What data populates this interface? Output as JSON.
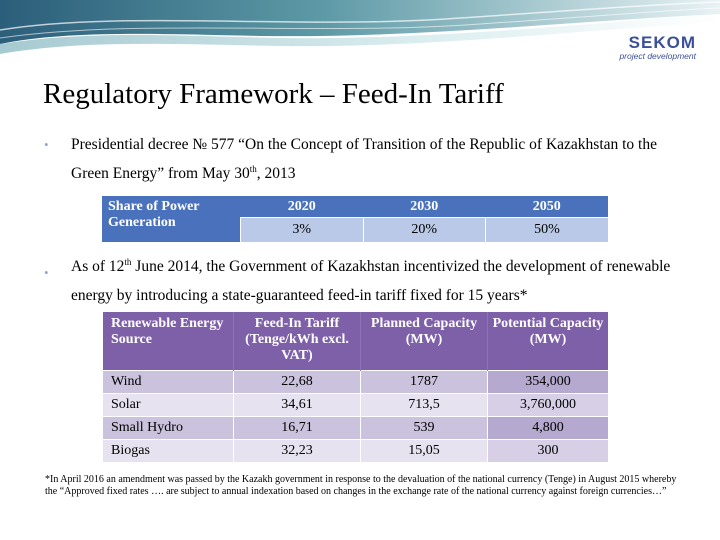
{
  "logo": {
    "name": "SEKOM",
    "tagline": "project development"
  },
  "title": "Regulatory Framework – Feed-In Tariff",
  "bullets": {
    "b1": {
      "text_before": "Presidential decree № 577 “On the Concept of Transition of the Republic of Kazakhstan to the Green Energy” from May 30",
      "sup": "th",
      "text_after": ", 2013"
    },
    "b2": {
      "text_before": "As of 12",
      "sup": "th",
      "text_after": " June 2014, the Government of Kazakhstan incentivized the development of renewable energy by introducing a state-guaranteed feed-in tariff fixed for 15 years*"
    }
  },
  "share_table": {
    "row_header": "Share of Power Generation",
    "years": [
      "2020",
      "2030",
      "2050"
    ],
    "values": [
      "3%",
      "20%",
      "50%"
    ]
  },
  "tariff_table": {
    "headers": [
      "Renewable Energy Source",
      "Feed-In Tariff (Tenge/kWh excl. VAT)",
      "Planned Capacity (MW)",
      "Potential Capacity (MW)"
    ],
    "rows": [
      [
        "Wind",
        "22,68",
        "1787",
        "354,000"
      ],
      [
        "Solar",
        "34,61",
        "713,5",
        "3,760,000"
      ],
      [
        "Small Hydro",
        "16,71",
        "539",
        "4,800"
      ],
      [
        "Biogas",
        "32,23",
        "15,05",
        "300"
      ]
    ]
  },
  "footnote": "*In April 2016 an amendment was passed by the Kazakh government in response to the devaluation of the national currency (Tenge) in August 2015 whereby the “Approved fixed rates …. are subject to annual indexation based on changes in the exchange rate of the national currency against foreign currencies…”",
  "colors": {
    "share_header": "#4a72bc",
    "share_cells": "#b9c9e7",
    "tariff_header": "#7e60a8",
    "bullet": "#8fa8cc",
    "logo": "#3b4f9a"
  }
}
